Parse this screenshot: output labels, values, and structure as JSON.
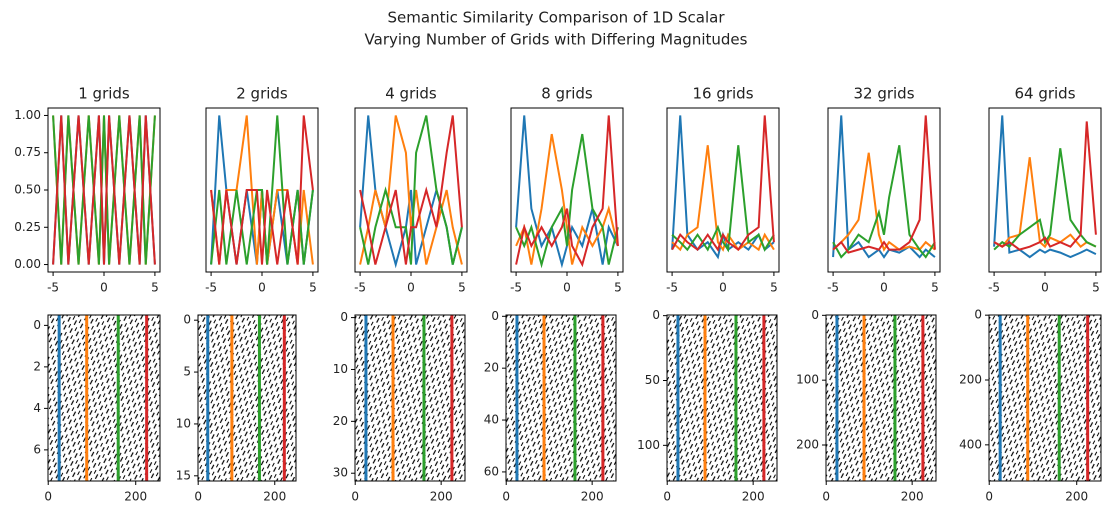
{
  "title": "Semantic Similarity Comparison of 1D Scalar",
  "subtitle": "Varying Number of Grids with Differing Magnitudes",
  "chart_data": [
    {
      "type": "line",
      "title": "1 grids",
      "xlim": [
        -5.5,
        5.5
      ],
      "xticks": [
        -5,
        0,
        5
      ],
      "ylim": [
        -0.05,
        1.05
      ],
      "yticks": [
        {
          "value": 0,
          "label": "0.00"
        },
        {
          "value": 0.25,
          "label": "0.25"
        },
        {
          "value": 0.5,
          "label": "0.50"
        },
        {
          "value": 0.75,
          "label": "0.75"
        },
        {
          "value": 1,
          "label": "1.00"
        }
      ],
      "x": [
        -5,
        -4.2,
        -3.5,
        -2.5,
        -1.5,
        -0.5,
        0,
        0.5,
        1.5,
        2.5,
        3.5,
        4.1,
        5
      ],
      "series": [
        {
          "color": "#1f77b4",
          "values": [
            0,
            1,
            0,
            1,
            0,
            1,
            0,
            1,
            0,
            1,
            0,
            1,
            0
          ]
        },
        {
          "color": "#ff7f0e",
          "values": [
            1,
            0,
            1,
            0,
            1,
            0,
            1,
            0,
            1,
            0,
            1,
            0,
            1
          ]
        },
        {
          "color": "#2ca02c",
          "values": [
            1,
            0,
            1,
            0,
            1,
            0,
            1,
            0,
            1,
            0,
            1,
            0,
            1
          ]
        },
        {
          "color": "#d62728",
          "values": [
            0,
            1,
            0,
            1,
            0,
            1,
            0,
            1,
            0,
            1,
            0,
            1,
            0
          ]
        }
      ]
    },
    {
      "type": "line",
      "title": "2 grids",
      "xlim": [
        -5.5,
        5.5
      ],
      "xticks": [
        -5,
        0,
        5
      ],
      "ylim": [
        -0.05,
        1.05
      ],
      "x": [
        -5,
        -4.2,
        -3.5,
        -2.5,
        -1.5,
        -0.5,
        0,
        0.5,
        1.5,
        2.5,
        3.5,
        4.1,
        5
      ],
      "series": [
        {
          "color": "#1f77b4",
          "values": [
            0,
            1,
            0.5,
            0,
            0.5,
            0,
            0.5,
            0,
            0.5,
            0,
            0.5,
            0,
            0.5
          ]
        },
        {
          "color": "#ff7f0e",
          "values": [
            0.5,
            0,
            0.5,
            0.5,
            1,
            0,
            0.5,
            0,
            0.5,
            0.5,
            0,
            0.5,
            0
          ]
        },
        {
          "color": "#2ca02c",
          "values": [
            0,
            0.5,
            0,
            0.5,
            0,
            0.5,
            0.5,
            0,
            1,
            0,
            0.5,
            0,
            0.5
          ]
        },
        {
          "color": "#d62728",
          "values": [
            0.5,
            0,
            0.5,
            0,
            0.5,
            0.5,
            0,
            0.5,
            0,
            0.5,
            0,
            1,
            0.5
          ]
        }
      ]
    },
    {
      "type": "line",
      "title": "4 grids",
      "xlim": [
        -5.5,
        5.5
      ],
      "xticks": [
        -5,
        0,
        5
      ],
      "ylim": [
        -0.05,
        1.05
      ],
      "x": [
        -5,
        -4.2,
        -3.5,
        -2.5,
        -1.5,
        -0.5,
        0,
        0.5,
        1.5,
        2.5,
        3.5,
        4.1,
        5
      ],
      "series": [
        {
          "color": "#1f77b4",
          "values": [
            0.25,
            1,
            0.5,
            0.25,
            0,
            0.25,
            0.5,
            0,
            0.25,
            0.5,
            0.25,
            0,
            0.25
          ]
        },
        {
          "color": "#ff7f0e",
          "values": [
            0,
            0.25,
            0.5,
            0.25,
            1,
            0.75,
            0.25,
            0.5,
            0,
            0.25,
            0.5,
            0.25,
            0
          ]
        },
        {
          "color": "#2ca02c",
          "values": [
            0.25,
            0,
            0.25,
            0.5,
            0.25,
            0.25,
            0,
            0.75,
            1,
            0.5,
            0.25,
            0,
            0.25
          ]
        },
        {
          "color": "#d62728",
          "values": [
            0.5,
            0.25,
            0,
            0.25,
            0.5,
            0,
            0.25,
            0.25,
            0.5,
            0.25,
            0.75,
            1,
            0.25
          ]
        }
      ]
    },
    {
      "type": "line",
      "title": "8 grids",
      "xlim": [
        -5.5,
        5.5
      ],
      "xticks": [
        -5,
        0,
        5
      ],
      "ylim": [
        -0.05,
        1.05
      ],
      "x": [
        -5,
        -4.2,
        -3.5,
        -2.5,
        -1.5,
        -0.5,
        0,
        0.5,
        1.5,
        2.5,
        3.5,
        4.1,
        5
      ],
      "series": [
        {
          "color": "#1f77b4",
          "values": [
            0.25,
            1,
            0.375,
            0.125,
            0.25,
            0,
            0.125,
            0.25,
            0.125,
            0.375,
            0,
            0.25,
            0.125
          ]
        },
        {
          "color": "#ff7f0e",
          "values": [
            0.125,
            0.25,
            0,
            0.375,
            0.875,
            0.5,
            0.25,
            0,
            0.25,
            0.125,
            0.25,
            0.375,
            0.125
          ]
        },
        {
          "color": "#2ca02c",
          "values": [
            0.25,
            0.125,
            0.25,
            0,
            0.25,
            0.375,
            0.125,
            0.5,
            0.875,
            0.375,
            0.25,
            0,
            0.25
          ]
        },
        {
          "color": "#d62728",
          "values": [
            0,
            0.25,
            0.125,
            0.25,
            0.125,
            0.25,
            0.375,
            0.125,
            0,
            0.25,
            0.375,
            1,
            0.125
          ]
        }
      ]
    },
    {
      "type": "line",
      "title": "16 grids",
      "xlim": [
        -5.5,
        5.5
      ],
      "xticks": [
        -5,
        0,
        5
      ],
      "ylim": [
        -0.05,
        1.05
      ],
      "x": [
        -5,
        -4.2,
        -3.5,
        -2.5,
        -1.5,
        -0.5,
        0,
        0.5,
        1.5,
        2.5,
        3.5,
        4.1,
        5
      ],
      "series": [
        {
          "color": "#1f77b4",
          "values": [
            0.1,
            1,
            0.2,
            0.1,
            0.15,
            0.05,
            0.2,
            0.1,
            0.15,
            0.1,
            0.2,
            0.1,
            0.15
          ]
        },
        {
          "color": "#ff7f0e",
          "values": [
            0.15,
            0.1,
            0.2,
            0.25,
            0.8,
            0.15,
            0.1,
            0.2,
            0.1,
            0.15,
            0.1,
            0.2,
            0.1
          ]
        },
        {
          "color": "#2ca02c",
          "values": [
            0.2,
            0.15,
            0.1,
            0.2,
            0.1,
            0.25,
            0.15,
            0.1,
            0.8,
            0.15,
            0.2,
            0.1,
            0.2
          ]
        },
        {
          "color": "#d62728",
          "values": [
            0.1,
            0.2,
            0.15,
            0.1,
            0.2,
            0.1,
            0.2,
            0.15,
            0.1,
            0.2,
            0.25,
            1,
            0.15
          ]
        }
      ]
    },
    {
      "type": "line",
      "title": "32 grids",
      "xlim": [
        -5.5,
        5.5
      ],
      "xticks": [
        -5,
        0,
        5
      ],
      "ylim": [
        -0.05,
        1.05
      ],
      "x": [
        -5,
        -4.2,
        -3.5,
        -2.5,
        -1.5,
        -0.5,
        0,
        0.5,
        1.5,
        2.5,
        3.5,
        4.1,
        5
      ],
      "series": [
        {
          "color": "#1f77b4",
          "values": [
            0.05,
            1,
            0.1,
            0.15,
            0.05,
            0.1,
            0.05,
            0.1,
            0.08,
            0.12,
            0.05,
            0.1,
            0.05
          ]
        },
        {
          "color": "#ff7f0e",
          "values": [
            0.1,
            0.15,
            0.2,
            0.3,
            0.75,
            0.2,
            0.1,
            0.15,
            0.1,
            0.12,
            0.1,
            0.15,
            0.1
          ]
        },
        {
          "color": "#2ca02c",
          "values": [
            0.15,
            0.05,
            0.1,
            0.2,
            0.15,
            0.35,
            0.2,
            0.45,
            0.8,
            0.2,
            0.1,
            0.05,
            0.15
          ]
        },
        {
          "color": "#d62728",
          "values": [
            0.1,
            0.15,
            0.08,
            0.1,
            0.12,
            0.1,
            0.15,
            0.1,
            0.1,
            0.15,
            0.3,
            1,
            0.1
          ]
        }
      ]
    },
    {
      "type": "line",
      "title": "64 grids",
      "xlim": [
        -5.5,
        5.5
      ],
      "xticks": [
        -5,
        0,
        5
      ],
      "ylim": [
        -0.05,
        1.05
      ],
      "x": [
        -5,
        -4.2,
        -3.5,
        -2.5,
        -1.5,
        -0.5,
        0,
        0.5,
        1.5,
        2.5,
        3.5,
        4.1,
        5
      ],
      "series": [
        {
          "color": "#1f77b4",
          "values": [
            0.12,
            1,
            0.08,
            0.1,
            0.05,
            0.1,
            0.08,
            0.1,
            0.08,
            0.05,
            0.08,
            0.1,
            0.07
          ]
        },
        {
          "color": "#ff7f0e",
          "values": [
            0.15,
            0.12,
            0.18,
            0.2,
            0.72,
            0.15,
            0.12,
            0.18,
            0.15,
            0.2,
            0.12,
            0.15,
            0.12
          ]
        },
        {
          "color": "#2ca02c",
          "values": [
            0.1,
            0.15,
            0.12,
            0.2,
            0.25,
            0.3,
            0.15,
            0.2,
            0.78,
            0.3,
            0.2,
            0.15,
            0.12
          ]
        },
        {
          "color": "#d62728",
          "values": [
            0.15,
            0.12,
            0.15,
            0.1,
            0.12,
            0.15,
            0.18,
            0.12,
            0.15,
            0.12,
            0.2,
            0.96,
            0.2
          ]
        }
      ]
    },
    {
      "type": "image",
      "xlim": [
        -0.5,
        255.5
      ],
      "xticks": [
        0,
        200
      ],
      "ylim": [
        7.5,
        -0.5
      ],
      "yticks": [
        0,
        2,
        4,
        6
      ],
      "vlines": [
        {
          "color": "#1f77b4",
          "x": 25
        },
        {
          "color": "#ff7f0e",
          "x": 88
        },
        {
          "color": "#2ca02c",
          "x": 160
        },
        {
          "color": "#d62728",
          "x": 225
        }
      ]
    },
    {
      "type": "image",
      "xlim": [
        -0.5,
        255.5
      ],
      "xticks": [
        0,
        200
      ],
      "ylim": [
        15.5,
        -0.5
      ],
      "yticks": [
        0,
        5,
        10,
        15
      ],
      "vlines": [
        {
          "color": "#1f77b4",
          "x": 25
        },
        {
          "color": "#ff7f0e",
          "x": 88
        },
        {
          "color": "#2ca02c",
          "x": 160
        },
        {
          "color": "#d62728",
          "x": 225
        }
      ]
    },
    {
      "type": "image",
      "xlim": [
        -0.5,
        255.5
      ],
      "xticks": [
        0,
        200
      ],
      "ylim": [
        31.5,
        -0.5
      ],
      "yticks": [
        0,
        10,
        20,
        30
      ],
      "vlines": [
        {
          "color": "#1f77b4",
          "x": 25
        },
        {
          "color": "#ff7f0e",
          "x": 88
        },
        {
          "color": "#2ca02c",
          "x": 160
        },
        {
          "color": "#d62728",
          "x": 225
        }
      ]
    },
    {
      "type": "image",
      "xlim": [
        -0.5,
        255.5
      ],
      "xticks": [
        0,
        200
      ],
      "ylim": [
        63.5,
        -0.5
      ],
      "yticks": [
        0,
        20,
        40,
        60
      ],
      "vlines": [
        {
          "color": "#1f77b4",
          "x": 25
        },
        {
          "color": "#ff7f0e",
          "x": 88
        },
        {
          "color": "#2ca02c",
          "x": 160
        },
        {
          "color": "#d62728",
          "x": 225
        }
      ]
    },
    {
      "type": "image",
      "xlim": [
        -0.5,
        255.5
      ],
      "xticks": [
        0,
        200
      ],
      "ylim": [
        127.5,
        -0.5
      ],
      "yticks": [
        0,
        50,
        100
      ],
      "vlines": [
        {
          "color": "#1f77b4",
          "x": 25
        },
        {
          "color": "#ff7f0e",
          "x": 88
        },
        {
          "color": "#2ca02c",
          "x": 160
        },
        {
          "color": "#d62728",
          "x": 225
        }
      ]
    },
    {
      "type": "image",
      "xlim": [
        -0.5,
        255.5
      ],
      "xticks": [
        0,
        200
      ],
      "ylim": [
        255.5,
        -0.5
      ],
      "yticks": [
        0,
        100,
        200
      ],
      "vlines": [
        {
          "color": "#1f77b4",
          "x": 25
        },
        {
          "color": "#ff7f0e",
          "x": 88
        },
        {
          "color": "#2ca02c",
          "x": 160
        },
        {
          "color": "#d62728",
          "x": 225
        }
      ]
    },
    {
      "type": "image",
      "xlim": [
        -0.5,
        255.5
      ],
      "xticks": [
        0,
        200
      ],
      "ylim": [
        511.5,
        -0.5
      ],
      "yticks": [
        0,
        200,
        400
      ],
      "vlines": [
        {
          "color": "#1f77b4",
          "x": 25
        },
        {
          "color": "#ff7f0e",
          "x": 88
        },
        {
          "color": "#2ca02c",
          "x": 160
        },
        {
          "color": "#d62728",
          "x": 225
        }
      ]
    }
  ]
}
